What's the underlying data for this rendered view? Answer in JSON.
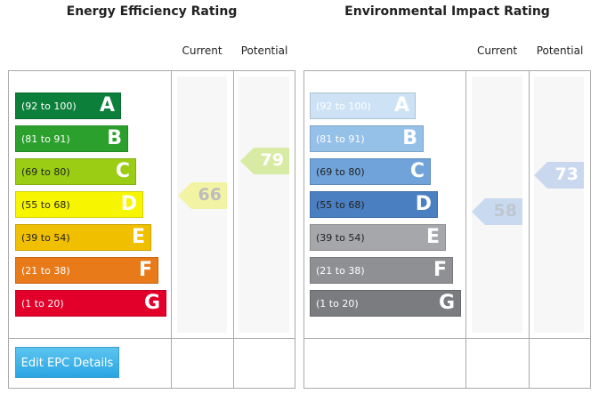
{
  "chart_data": [
    {
      "type": "bar",
      "title": "Energy Efficiency Rating",
      "columns": [
        "Current",
        "Potential"
      ],
      "bands": [
        {
          "letter": "A",
          "range": "(92 to 100)",
          "color": "#0c7f3a",
          "text": "#ffffff"
        },
        {
          "letter": "B",
          "range": "(81 to 91)",
          "color": "#2ca02c",
          "text": "#ffffff"
        },
        {
          "letter": "C",
          "range": "(69 to 80)",
          "color": "#9acd14",
          "text": "#222222"
        },
        {
          "letter": "D",
          "range": "(55 to 68)",
          "color": "#f7f500",
          "text": "#222222"
        },
        {
          "letter": "E",
          "range": "(39 to 54)",
          "color": "#f0c000",
          "text": "#222222"
        },
        {
          "letter": "F",
          "range": "(21 to 38)",
          "color": "#e87a1a",
          "text": "#ffffff"
        },
        {
          "letter": "G",
          "range": "(1 to 20)",
          "color": "#e2002a",
          "text": "#ffffff"
        }
      ],
      "current": {
        "value": "66",
        "color": "#f3f3a4",
        "text": "#bdbdbd"
      },
      "potential": {
        "value": "79",
        "color": "#d8eba4",
        "text": "#ffffff"
      }
    },
    {
      "type": "bar",
      "title": "Environmental Impact Rating",
      "columns": [
        "Current",
        "Potential"
      ],
      "bands": [
        {
          "letter": "A",
          "range": "(92 to 100)",
          "color": "#cde3f5",
          "text": "#ffffff"
        },
        {
          "letter": "B",
          "range": "(81 to 91)",
          "color": "#95c0e8",
          "text": "#ffffff"
        },
        {
          "letter": "C",
          "range": "(69 to 80)",
          "color": "#6fa3da",
          "text": "#222222"
        },
        {
          "letter": "D",
          "range": "(55 to 68)",
          "color": "#4a7fc1",
          "text": "#222222"
        },
        {
          "letter": "E",
          "range": "(39 to 54)",
          "color": "#a6a7aa",
          "text": "#222222"
        },
        {
          "letter": "F",
          "range": "(21 to 38)",
          "color": "#8f9093",
          "text": "#ffffff"
        },
        {
          "letter": "G",
          "range": "(1 to 20)",
          "color": "#7b7c80",
          "text": "#ffffff"
        }
      ],
      "current": {
        "value": "58",
        "color": "#c9daf0",
        "text": "#bfc6cf"
      },
      "potential": {
        "value": "73",
        "color": "#c9d8ee",
        "text": "#ffffff"
      }
    }
  ],
  "button": {
    "label": "Edit EPC Details"
  }
}
